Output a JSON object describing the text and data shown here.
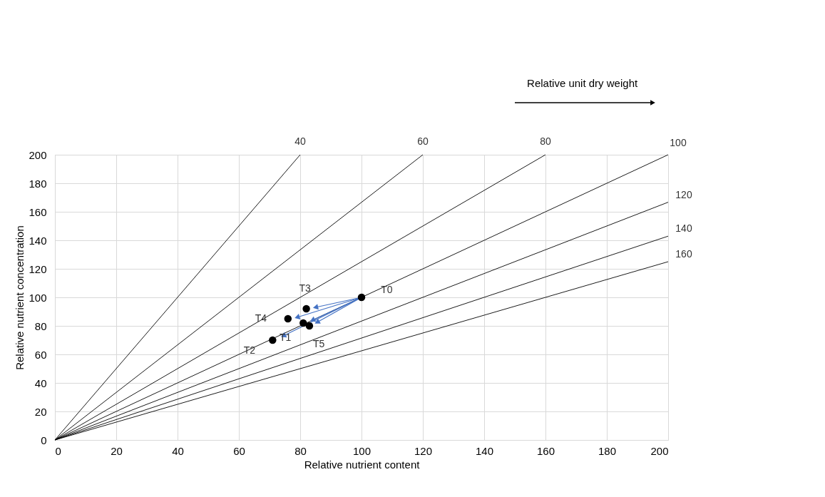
{
  "chart_data": {
    "type": "scatter",
    "xlabel": "Relative nutrient content",
    "ylabel": "Relative nutrient concentration",
    "xlim": [
      0,
      200
    ],
    "ylim": [
      0,
      200
    ],
    "xticks": [
      0,
      20,
      40,
      60,
      80,
      100,
      120,
      140,
      160,
      180,
      200
    ],
    "yticks": [
      0,
      20,
      40,
      60,
      80,
      100,
      120,
      140,
      160,
      180,
      200
    ],
    "grid": true,
    "annotations": [
      "Relative unit dry weight",
      {
        "text": "40",
        "x": 80,
        "y": 200
      },
      {
        "text": "60",
        "x": 120,
        "y": 200
      },
      {
        "text": "80",
        "x": 160,
        "y": 200
      },
      {
        "text": "100",
        "x": 200,
        "y": 200
      },
      {
        "text": "120",
        "x": 200,
        "y": 166.7
      },
      {
        "text": "140",
        "x": 200,
        "y": 142.9
      },
      {
        "text": "160",
        "x": 200,
        "y": 125
      }
    ],
    "series": [
      {
        "type": "line",
        "color": "#000000",
        "marker": "none",
        "x": [
          0,
          80
        ],
        "values": [
          0,
          200
        ]
      },
      {
        "type": "line",
        "color": "#000000",
        "marker": "none",
        "x": [
          0,
          120
        ],
        "values": [
          0,
          200
        ]
      },
      {
        "type": "line",
        "color": "#000000",
        "marker": "none",
        "x": [
          0,
          160
        ],
        "values": [
          0,
          200
        ]
      },
      {
        "type": "line",
        "color": "#000000",
        "marker": "none",
        "x": [
          0,
          200
        ],
        "values": [
          0,
          200
        ]
      },
      {
        "type": "line",
        "color": "#000000",
        "marker": "none",
        "x": [
          0,
          200
        ],
        "values": [
          0,
          166.7
        ]
      },
      {
        "type": "line",
        "color": "#000000",
        "marker": "none",
        "x": [
          0,
          200
        ],
        "values": [
          0,
          142.9
        ]
      },
      {
        "type": "line",
        "color": "#000000",
        "marker": "none",
        "x": [
          0,
          200
        ],
        "values": [
          0,
          125
        ]
      },
      {
        "type": "line",
        "color": "#4472c4",
        "marker": "triangle",
        "x": [
          100,
          85
        ],
        "values": [
          100,
          93
        ]
      },
      {
        "type": "line",
        "color": "#4472c4",
        "marker": "triangle",
        "x": [
          100,
          79
        ],
        "values": [
          100,
          86
        ]
      },
      {
        "type": "line",
        "color": "#4472c4",
        "marker": "triangle",
        "x": [
          100,
          84
        ],
        "values": [
          100,
          84
        ]
      },
      {
        "type": "line",
        "color": "#4472c4",
        "marker": "triangle",
        "x": [
          100,
          85.5
        ],
        "values": [
          100,
          82.5
        ]
      },
      {
        "type": "line",
        "color": "#4472c4",
        "marker": "triangle",
        "x": [
          100,
          74.5
        ],
        "values": [
          100,
          73
        ]
      },
      {
        "color": "#000000",
        "marker": "circle",
        "x": [
          100,
          82,
          76,
          81,
          83,
          71
        ],
        "values": [
          100,
          92,
          85,
          82,
          80,
          70
        ],
        "value_labels": [
          "T0",
          "T3",
          "T4",
          "T1",
          "T5",
          "T2"
        ]
      }
    ]
  }
}
